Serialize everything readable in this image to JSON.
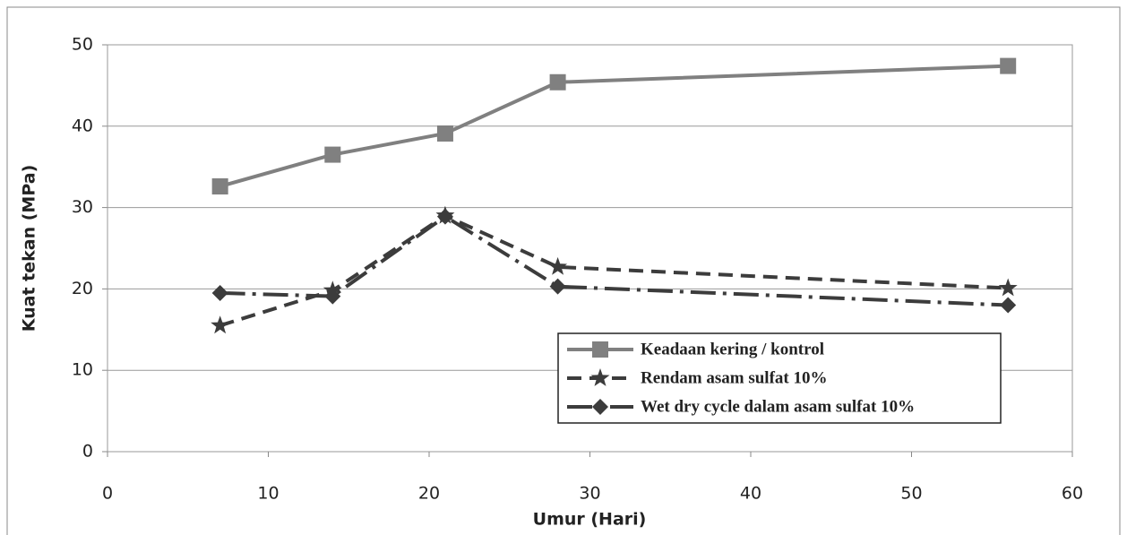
{
  "chart_data": {
    "type": "line",
    "x_label": "Umur (Hari)",
    "y_label": "Kuat tekan (MPa)",
    "x": [
      7,
      14,
      21,
      28,
      56
    ],
    "series": [
      {
        "name": "Keadaan kering / kontrol",
        "color": "#808080",
        "values": [
          32.6,
          36.5,
          39.1,
          45.4,
          47.4
        ]
      },
      {
        "name": "Rendam asam sulfat 10%",
        "color": "#3c3c3c",
        "values": [
          15.5,
          19.8,
          29.0,
          22.7,
          20.1
        ]
      },
      {
        "name": "Wet dry cycle dalam asam sulfat 10%",
        "color": "#3c3c3c",
        "values": [
          19.5,
          19.1,
          28.9,
          20.3,
          18.0
        ]
      }
    ],
    "xlim": [
      0,
      60
    ],
    "xticks": [
      0,
      10,
      20,
      30,
      40,
      50,
      60
    ],
    "ylim": [
      0,
      50
    ],
    "yticks": [
      0,
      10,
      20,
      30,
      40,
      50
    ],
    "grid": true,
    "legend": "lower right"
  }
}
